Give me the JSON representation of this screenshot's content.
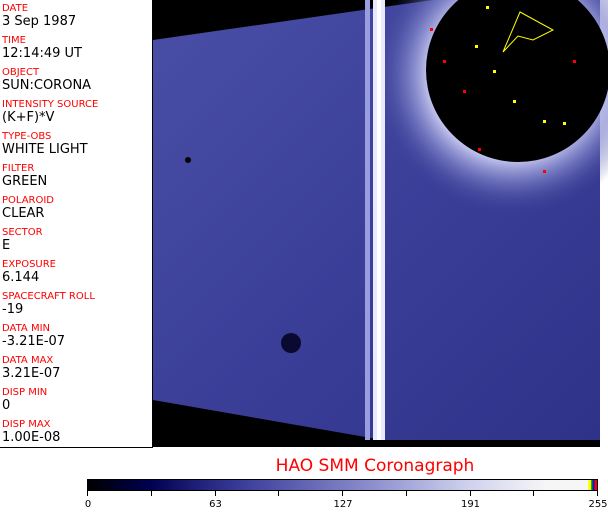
{
  "fields": [
    {
      "label": "DATE",
      "value": "3 Sep 1987"
    },
    {
      "label": "TIME",
      "value": "12:14:49 UT"
    },
    {
      "label": "OBJECT",
      "value": "SUN:CORONA"
    },
    {
      "label": "INTENSITY SOURCE",
      "value": "(K+F)*V"
    },
    {
      "label": "TYPE-OBS",
      "value": "WHITE LIGHT"
    },
    {
      "label": "FILTER",
      "value": "GREEN"
    },
    {
      "label": "POLAROID",
      "value": "CLEAR"
    },
    {
      "label": "SECTOR",
      "value": "E"
    },
    {
      "label": "EXPOSURE",
      "value": "6.144"
    },
    {
      "label": "SPACECRAFT ROLL",
      "value": "-19"
    },
    {
      "label": "DATA MIN",
      "value": "-3.21E-07"
    },
    {
      "label": "DATA MAX",
      "value": "3.21E-07"
    },
    {
      "label": "DISP MIN",
      "value": "0"
    },
    {
      "label": "DISP MAX",
      "value": "1.00E-08"
    }
  ],
  "title": "HAO  SMM Coronagraph",
  "colorbar": {
    "ticks": [
      "0",
      "63",
      "127",
      "191",
      "255"
    ],
    "min": 0,
    "max": 255
  },
  "colors": {
    "label": "#ff0000",
    "field": "#3a3f9a",
    "occulter": "#000000"
  }
}
